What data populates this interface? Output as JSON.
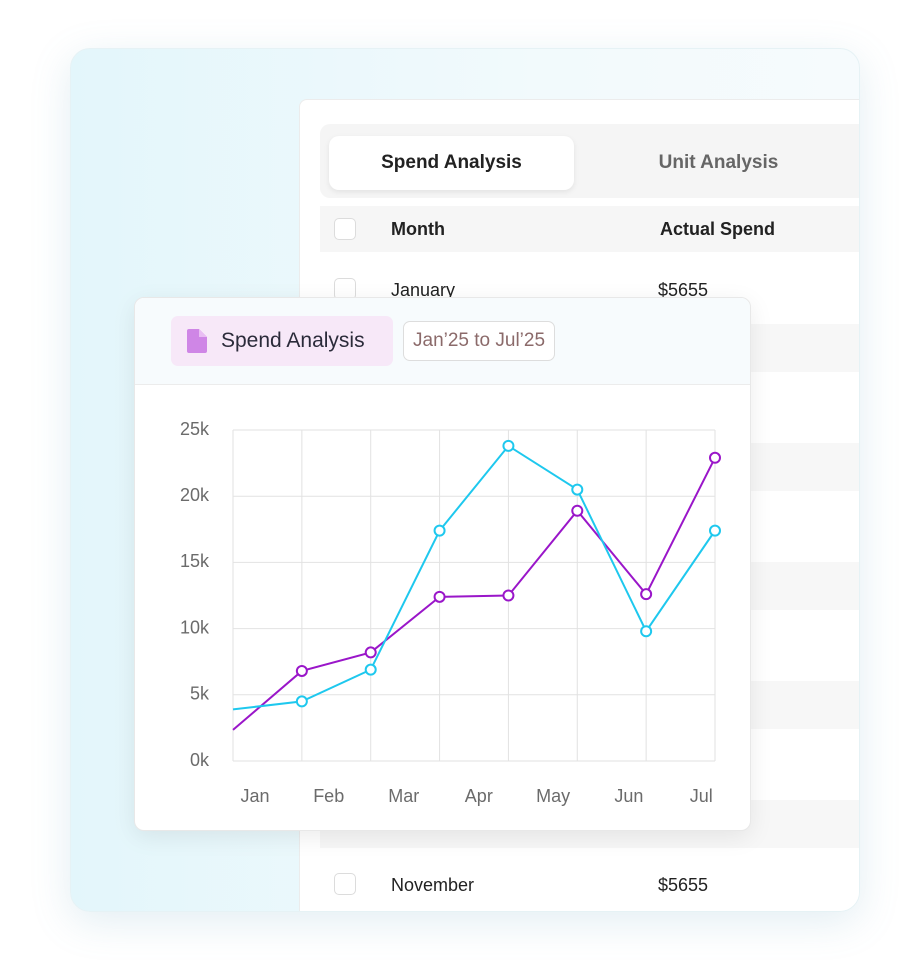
{
  "tabs": [
    "Spend Analysis",
    "Unit Analysis"
  ],
  "table": {
    "header": [
      "Month",
      "Actual Spend"
    ],
    "rows": [
      [
        "January",
        "$5655"
      ],
      [
        "November",
        "$5655"
      ]
    ]
  },
  "chart_card": {
    "badge": "Spend Analysis",
    "date_range": "Jan’25 to Jul’25"
  },
  "chart_data": {
    "type": "line",
    "x": [
      0,
      1,
      2,
      3,
      4,
      5,
      6,
      7
    ],
    "xlim": [
      0,
      7
    ],
    "xticks": [
      {
        "value": 0.32,
        "label": "Jan"
      },
      {
        "value": 1.39,
        "label": "Feb"
      },
      {
        "value": 2.48,
        "label": "Mar"
      },
      {
        "value": 3.57,
        "label": "Apr"
      },
      {
        "value": 4.65,
        "label": "May"
      },
      {
        "value": 5.75,
        "label": "Jun"
      },
      {
        "value": 6.8,
        "label": "Jul"
      }
    ],
    "ylim": [
      0,
      25000
    ],
    "yticks": [
      {
        "value": 0,
        "label": "0k"
      },
      {
        "value": 5000,
        "label": "5k"
      },
      {
        "value": 10000,
        "label": "10k"
      },
      {
        "value": 15000,
        "label": "15k"
      },
      {
        "value": 20000,
        "label": "20k"
      },
      {
        "value": 25000,
        "label": "25k"
      }
    ],
    "grid": true,
    "series": [
      {
        "color": "#9a16c9",
        "values": [
          2350,
          6800,
          8200,
          12400,
          12500,
          18900,
          12600,
          22900
        ]
      },
      {
        "color": "#1ec8ee",
        "values": [
          3900,
          4500,
          6900,
          17400,
          23800,
          20500,
          9800,
          17400
        ]
      }
    ]
  }
}
